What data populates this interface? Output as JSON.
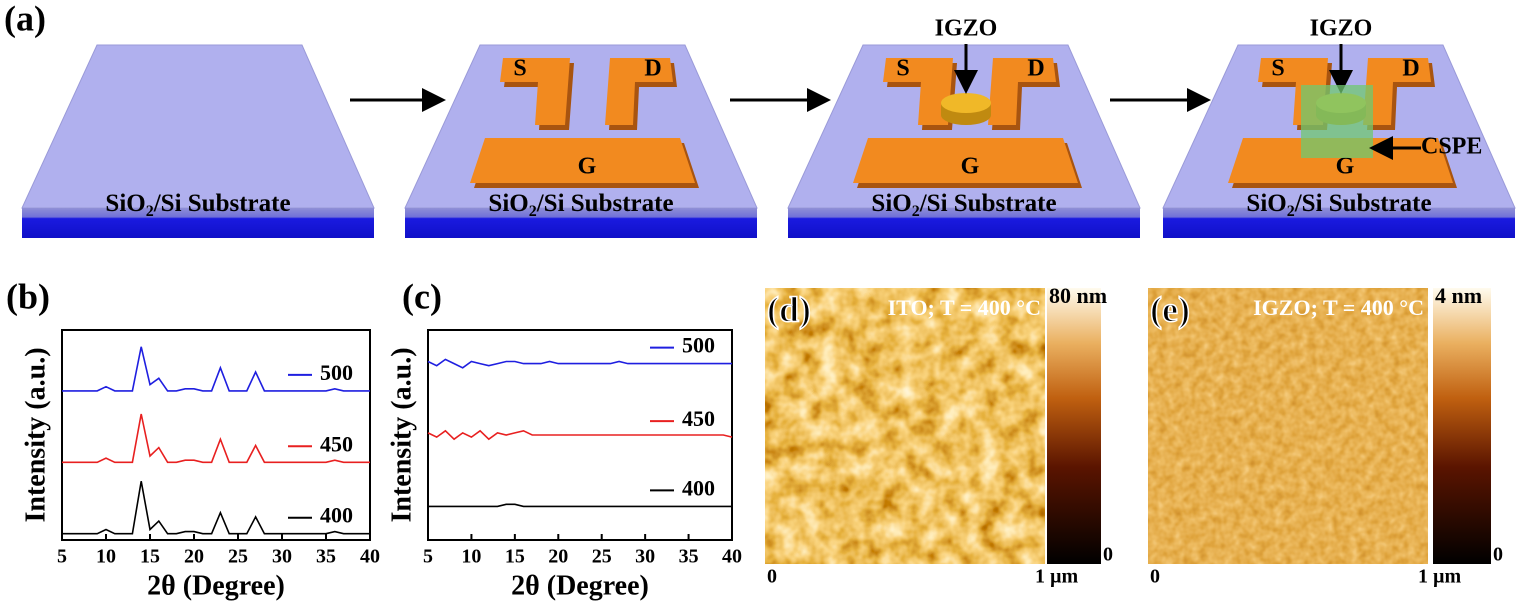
{
  "panel_a": {
    "label": "(a)",
    "steps": [
      {
        "substrate": [
          "SiO",
          "2",
          "/Si Substrate"
        ]
      },
      {
        "source": "S",
        "drain": "D",
        "gate": "G",
        "substrate": [
          "SiO",
          "2",
          "/Si Substrate"
        ]
      },
      {
        "source": "S",
        "drain": "D",
        "gate": "G",
        "igzo": "IGZO",
        "substrate": [
          "SiO",
          "2",
          "/Si Substrate"
        ]
      },
      {
        "source": "S",
        "drain": "D",
        "gate": "G",
        "igzo": "IGZO",
        "cspe": "CSPE",
        "substrate": [
          "SiO",
          "2",
          "/Si Substrate"
        ]
      }
    ]
  },
  "chart_data": [
    {
      "type": "line",
      "panel": "(b)",
      "xlabel": "2θ (Degree)",
      "ylabel": "Intensity (a.u.)",
      "x": [
        5,
        6,
        7,
        8,
        9,
        10,
        11,
        12,
        13,
        14,
        15,
        16,
        17,
        18,
        19,
        20,
        21,
        22,
        23,
        24,
        25,
        26,
        27,
        28,
        29,
        30,
        31,
        32,
        33,
        34,
        35,
        36,
        37,
        38,
        39,
        40
      ],
      "xlim": [
        5,
        40
      ],
      "xticks": [
        5,
        10,
        15,
        20,
        25,
        30,
        35,
        40
      ],
      "ylim": [
        0,
        100
      ],
      "series": [
        {
          "name": "500",
          "color": "#1f1fe0",
          "values": [
            71,
            71,
            71,
            71,
            71,
            73,
            71,
            71,
            71,
            92,
            74,
            77,
            71,
            71,
            72,
            72,
            71,
            71,
            82,
            71,
            71,
            71,
            80,
            71,
            71,
            71,
            71,
            71,
            71,
            71,
            71,
            72,
            71,
            71,
            71,
            71
          ]
        },
        {
          "name": "450",
          "color": "#e82020",
          "values": [
            37,
            37,
            37,
            37,
            37,
            39,
            37,
            37,
            37,
            60,
            40,
            44,
            37,
            37,
            38,
            38,
            37,
            37,
            48,
            37,
            37,
            37,
            45,
            37,
            37,
            37,
            37,
            37,
            37,
            37,
            37,
            38,
            37,
            37,
            37,
            37
          ]
        },
        {
          "name": "400",
          "color": "#000000",
          "values": [
            3,
            3,
            3,
            3,
            3,
            5,
            3,
            3,
            3,
            28,
            5,
            9,
            3,
            3,
            4,
            4,
            3,
            3,
            13,
            3,
            3,
            3,
            11,
            3,
            3,
            3,
            3,
            3,
            3,
            3,
            3,
            4,
            3,
            3,
            3,
            3
          ]
        }
      ]
    },
    {
      "type": "line",
      "panel": "(c)",
      "xlabel": "2θ (Degree)",
      "ylabel": "Intensity (a.u.)",
      "x": [
        5,
        6,
        7,
        8,
        9,
        10,
        11,
        12,
        13,
        14,
        15,
        16,
        17,
        18,
        19,
        20,
        21,
        22,
        23,
        24,
        25,
        26,
        27,
        28,
        29,
        30,
        31,
        32,
        33,
        34,
        35,
        36,
        37,
        38,
        39,
        40
      ],
      "xlim": [
        5,
        40
      ],
      "xticks": [
        5,
        10,
        15,
        20,
        25,
        30,
        35,
        40
      ],
      "ylim": [
        0,
        100
      ],
      "series": [
        {
          "name": "500",
          "color": "#1f1fe0",
          "values": [
            85,
            83,
            86,
            84,
            82,
            85,
            84,
            83,
            84,
            85,
            85,
            84,
            84,
            84,
            85,
            84,
            84,
            84,
            84,
            84,
            84,
            84,
            85,
            84,
            84,
            84,
            84,
            84,
            84,
            84,
            84,
            84,
            84,
            84,
            84,
            84
          ]
        },
        {
          "name": "450",
          "color": "#e82020",
          "values": [
            51,
            49,
            52,
            48,
            51,
            49,
            52,
            48,
            51,
            50,
            51,
            52,
            50,
            50,
            50,
            50,
            50,
            50,
            50,
            50,
            50,
            50,
            50,
            50,
            50,
            50,
            50,
            50,
            50,
            50,
            50,
            50,
            50,
            50,
            50,
            49
          ]
        },
        {
          "name": "400",
          "color": "#000000",
          "values": [
            16,
            16,
            16,
            16,
            16,
            16,
            16,
            16,
            16,
            17,
            17,
            16,
            16,
            16,
            16,
            16,
            16,
            16,
            16,
            16,
            16,
            16,
            16,
            16,
            16,
            16,
            16,
            16,
            16,
            16,
            16,
            16,
            16,
            16,
            16,
            16
          ]
        }
      ]
    }
  ],
  "afm": [
    {
      "panel": "(d)",
      "title": "ITO; T = 400 °C",
      "scale_max": "80 nm",
      "scale_min": "0",
      "x_min": "0",
      "x_max": "1 µm"
    },
    {
      "panel": "(e)",
      "title": "IGZO; T = 400 °C",
      "scale_max": "4 nm",
      "scale_min": "0",
      "x_min": "0",
      "x_max": "1 µm"
    }
  ]
}
